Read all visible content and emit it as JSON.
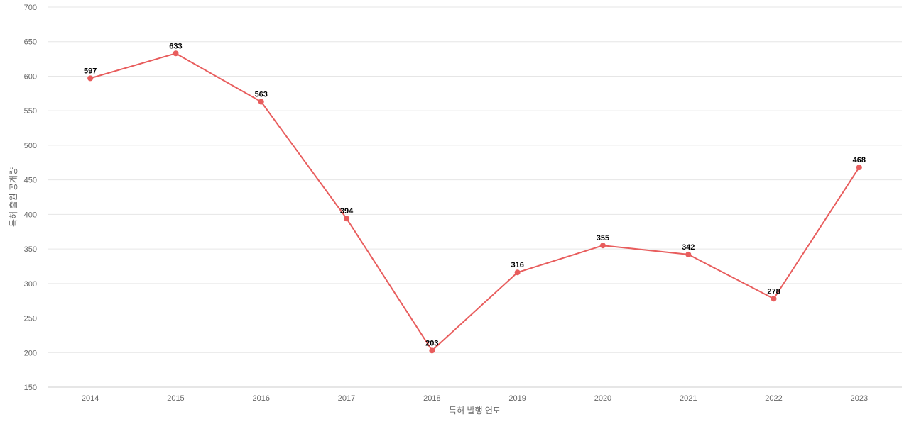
{
  "chart_data": {
    "type": "line",
    "title": "",
    "xlabel": "특허 발행 연도",
    "ylabel": "특허 출원 공개량",
    "categories": [
      "2014",
      "2015",
      "2016",
      "2017",
      "2018",
      "2019",
      "2020",
      "2021",
      "2022",
      "2023"
    ],
    "series": [
      {
        "values": [
          597,
          633,
          563,
          394,
          203,
          316,
          355,
          342,
          278,
          468
        ],
        "color": "#e85d5d"
      }
    ],
    "ylim": [
      150,
      700
    ],
    "yticks": [
      150,
      200,
      250,
      300,
      350,
      400,
      450,
      500,
      550,
      600,
      650,
      700
    ],
    "grid": true,
    "data_labels": true,
    "legend": "none"
  }
}
